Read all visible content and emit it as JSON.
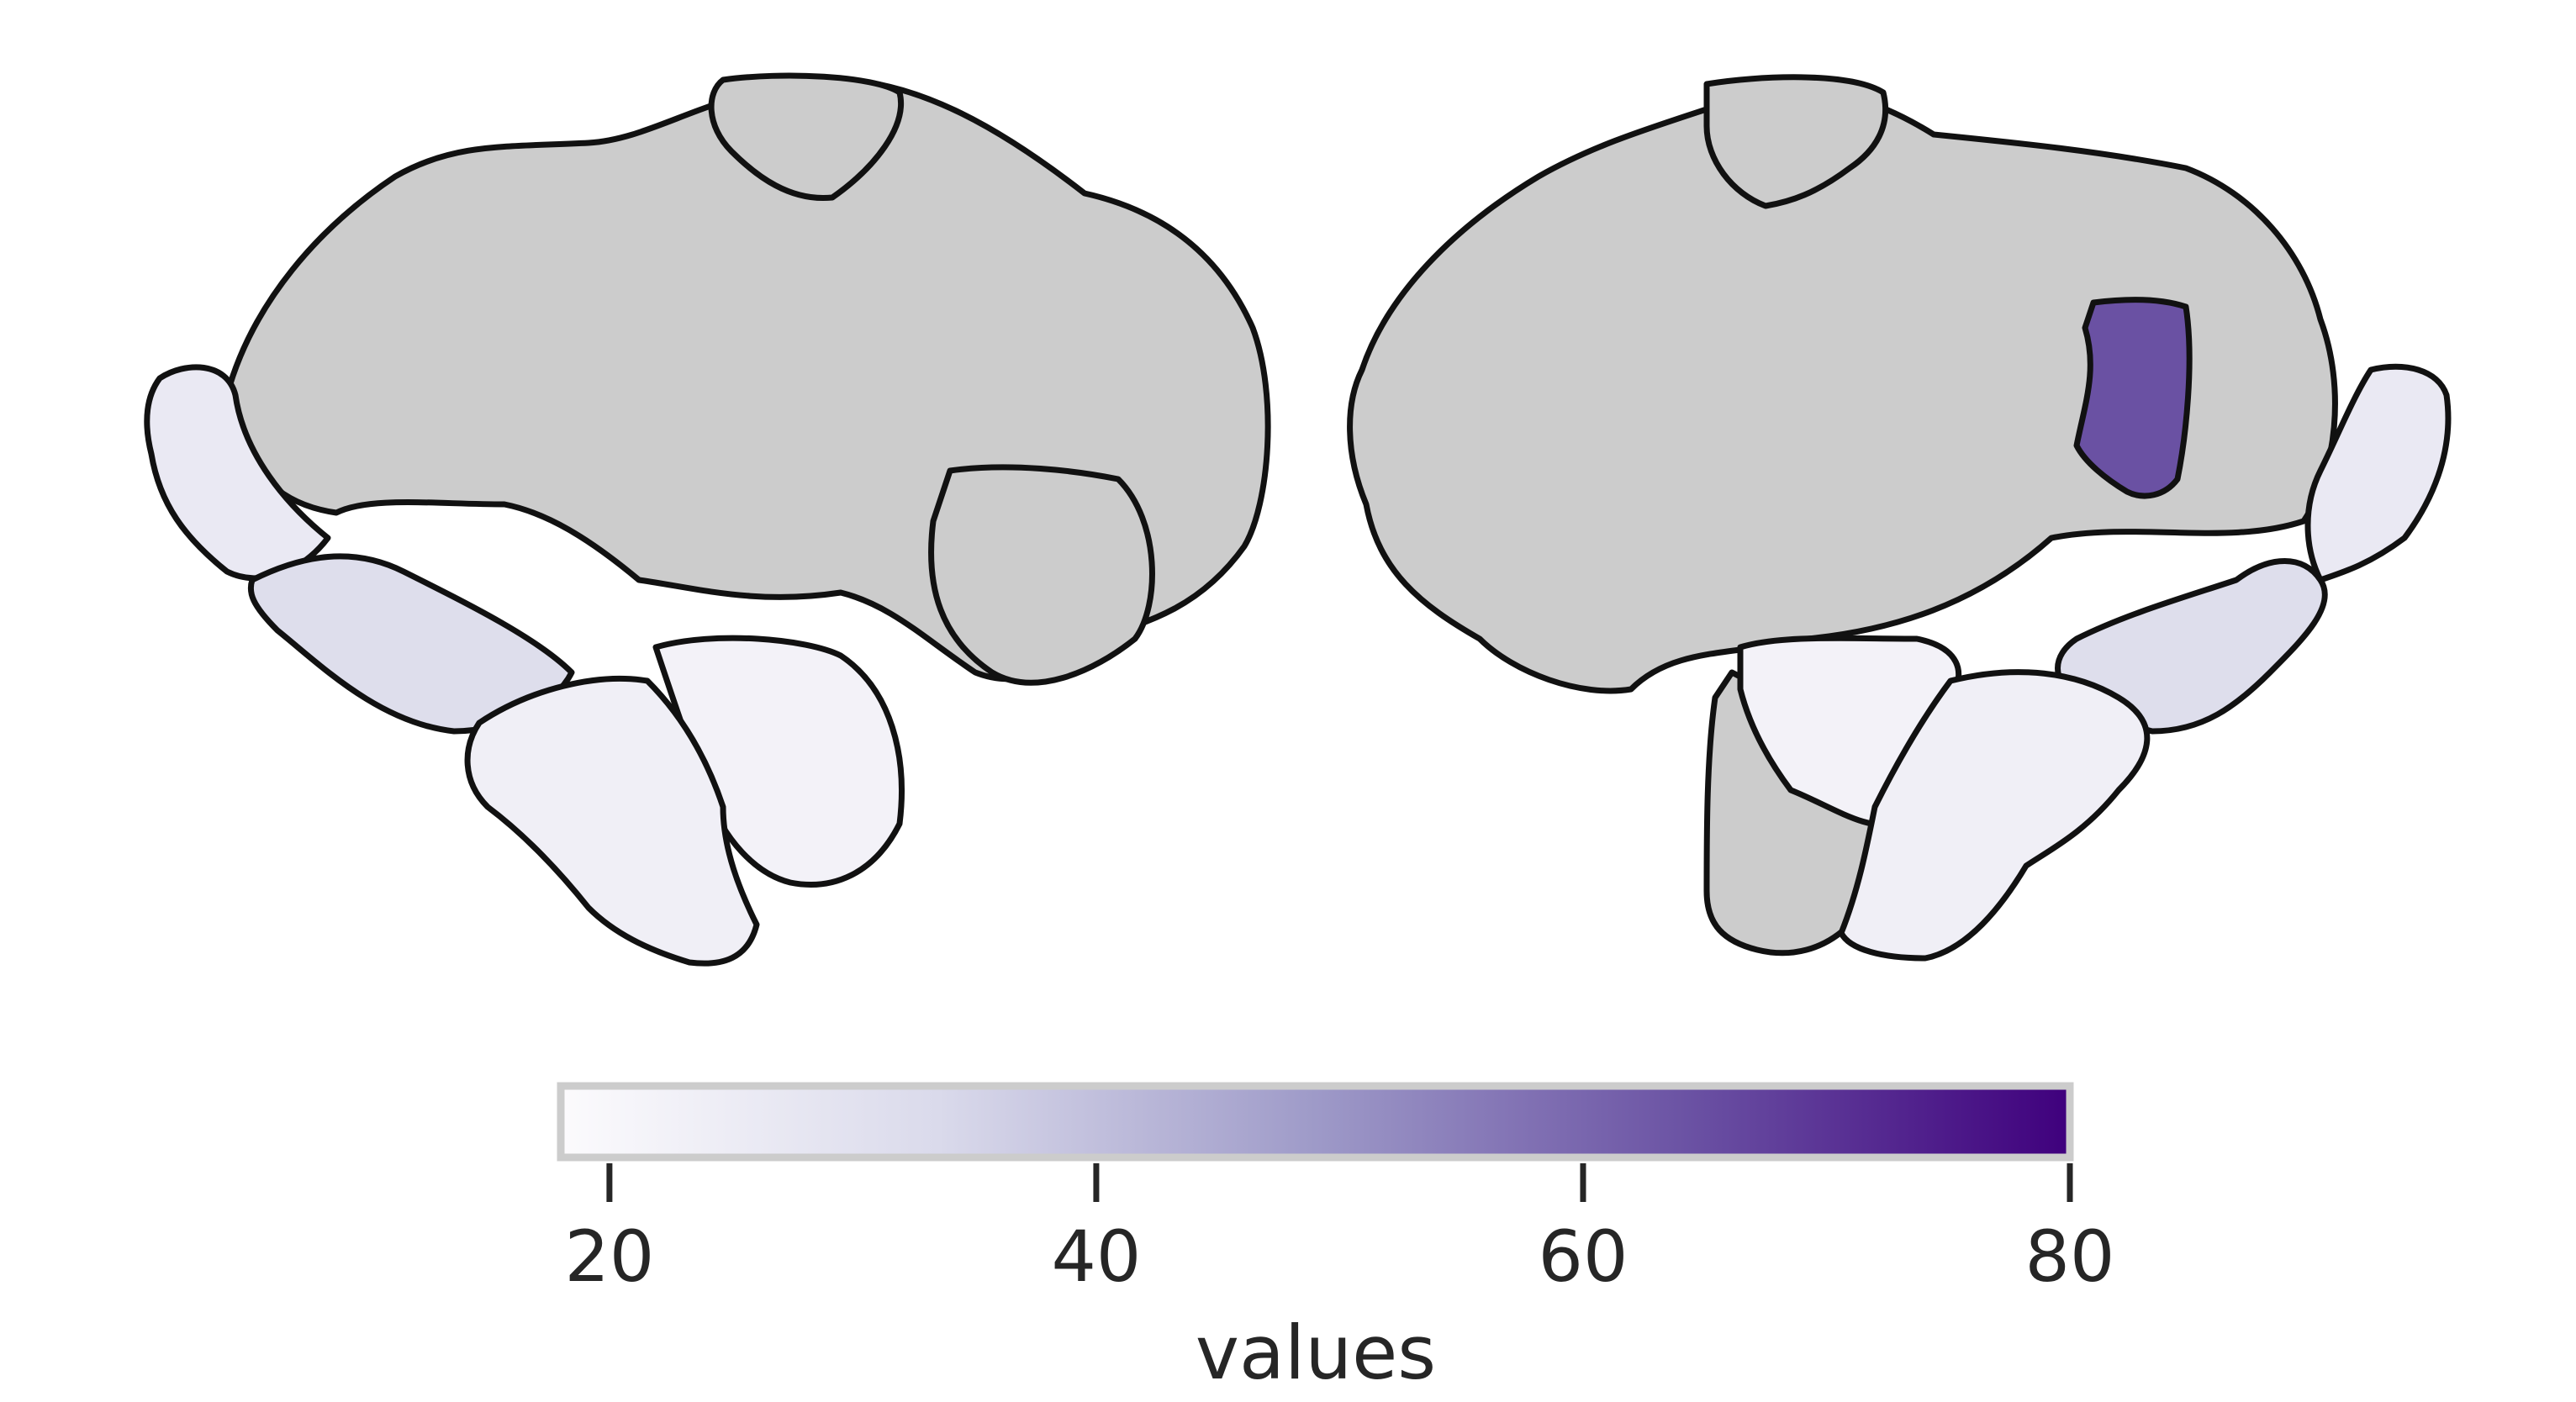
{
  "colors": {
    "no_data": "#cccccc",
    "outline": "#111111",
    "cmap_low": "#fcfbfd",
    "cmap_mid": "#bcbddc",
    "cmap_high": "#3f007d",
    "text": "#262626"
  },
  "colorbar": {
    "label": "values",
    "range": [
      18,
      80
    ],
    "ticks": [
      {
        "value": 20,
        "label": "20"
      },
      {
        "value": 40,
        "label": "40"
      },
      {
        "value": 60,
        "label": "60"
      },
      {
        "value": 80,
        "label": "80"
      }
    ],
    "orientation": "horizontal",
    "placement": "bottom"
  },
  "chart_data": {
    "type": "heatmap",
    "description_of_encoding": "",
    "regions": [
      {
        "hemisphere": "left",
        "view": "lateral",
        "value": null
      },
      {
        "hemisphere": "left",
        "view": "lateral",
        "value": 26
      },
      {
        "hemisphere": "left",
        "view": "lateral",
        "value": 27
      },
      {
        "hemisphere": "left",
        "view": "lateral",
        "value": 24
      },
      {
        "hemisphere": "left",
        "view": "lateral",
        "value": 23
      },
      {
        "hemisphere": "right",
        "view": "medial",
        "value": 66
      },
      {
        "hemisphere": "right",
        "view": "medial",
        "value": 26
      },
      {
        "hemisphere": "right",
        "view": "medial",
        "value": 27
      },
      {
        "hemisphere": "right",
        "view": "medial",
        "value": 24
      },
      {
        "hemisphere": "right",
        "view": "medial",
        "value": 23
      }
    ]
  }
}
